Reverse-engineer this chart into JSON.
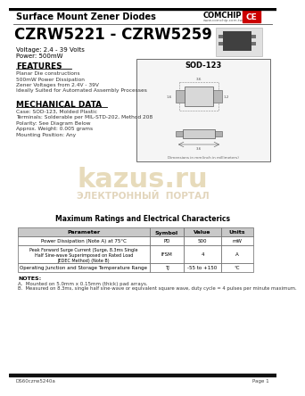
{
  "title_top": "Surface Mount Zener Diodes",
  "part_range": "CZRW5221 - CZRW5259",
  "voltage": "Voltage: 2.4 - 39 Volts",
  "power": "Power: 500mW",
  "features_title": "FEATURES",
  "features": [
    "Planar Die constructions",
    "500mW Power Dissipation",
    "Zener Voltages from 2.4V - 39V",
    "Ideally Suited for Automated Assembly Processes"
  ],
  "mech_title": "MECHANICAL DATA",
  "mech_data": [
    "Case: SOD-123, Molded Plastic",
    "Terminals: Solderable per MIL-STD-202, Method 208",
    "Polarity: See Diagram Below",
    "Approx. Weight: 0.005 grams",
    "Mounting Position: Any"
  ],
  "diagram_label": "SOD-123",
  "table_title": "Maximum Ratings and Electrical Characterics",
  "table_headers": [
    "Parameter",
    "Symbol",
    "Value",
    "Units"
  ],
  "table_rows": [
    [
      "Power Dissipation (Note A) at 75°C",
      "PD",
      "500",
      "mW"
    ],
    [
      "Peak Forward Surge Current (Surge, 8.3ms Single\nHalf Sine-wave Superimposed on Rated Load\nJEDEC Method) (Note B)",
      "IFSM",
      "4",
      "A"
    ],
    [
      "Operating Junction and Storage Temperature Range",
      "TJ",
      "-55 to +150",
      "°C"
    ]
  ],
  "notes_title": "NOTES:",
  "note_a": "A.  Mounted on 5.0mm x 0.15mm (thick) pad arrays.",
  "note_b": "B.  Measured on 8.3ms, single half sine-wave or equivalent square wave, duty cycle = 4 pulses per minute maximum.",
  "footer_left": "DS60czrw5240a",
  "footer_right": "Page 1",
  "bg_color": "#ffffff",
  "comchip_text": "COMCHIP",
  "watermark_text": "kazus.ru",
  "watermark_sub": "ЭЛЕКТРОННЫЙ  ПОРТАЛ",
  "sep_line_color": "#888888",
  "table_border_color": "#666666",
  "header_gray": "#c8c8c8"
}
